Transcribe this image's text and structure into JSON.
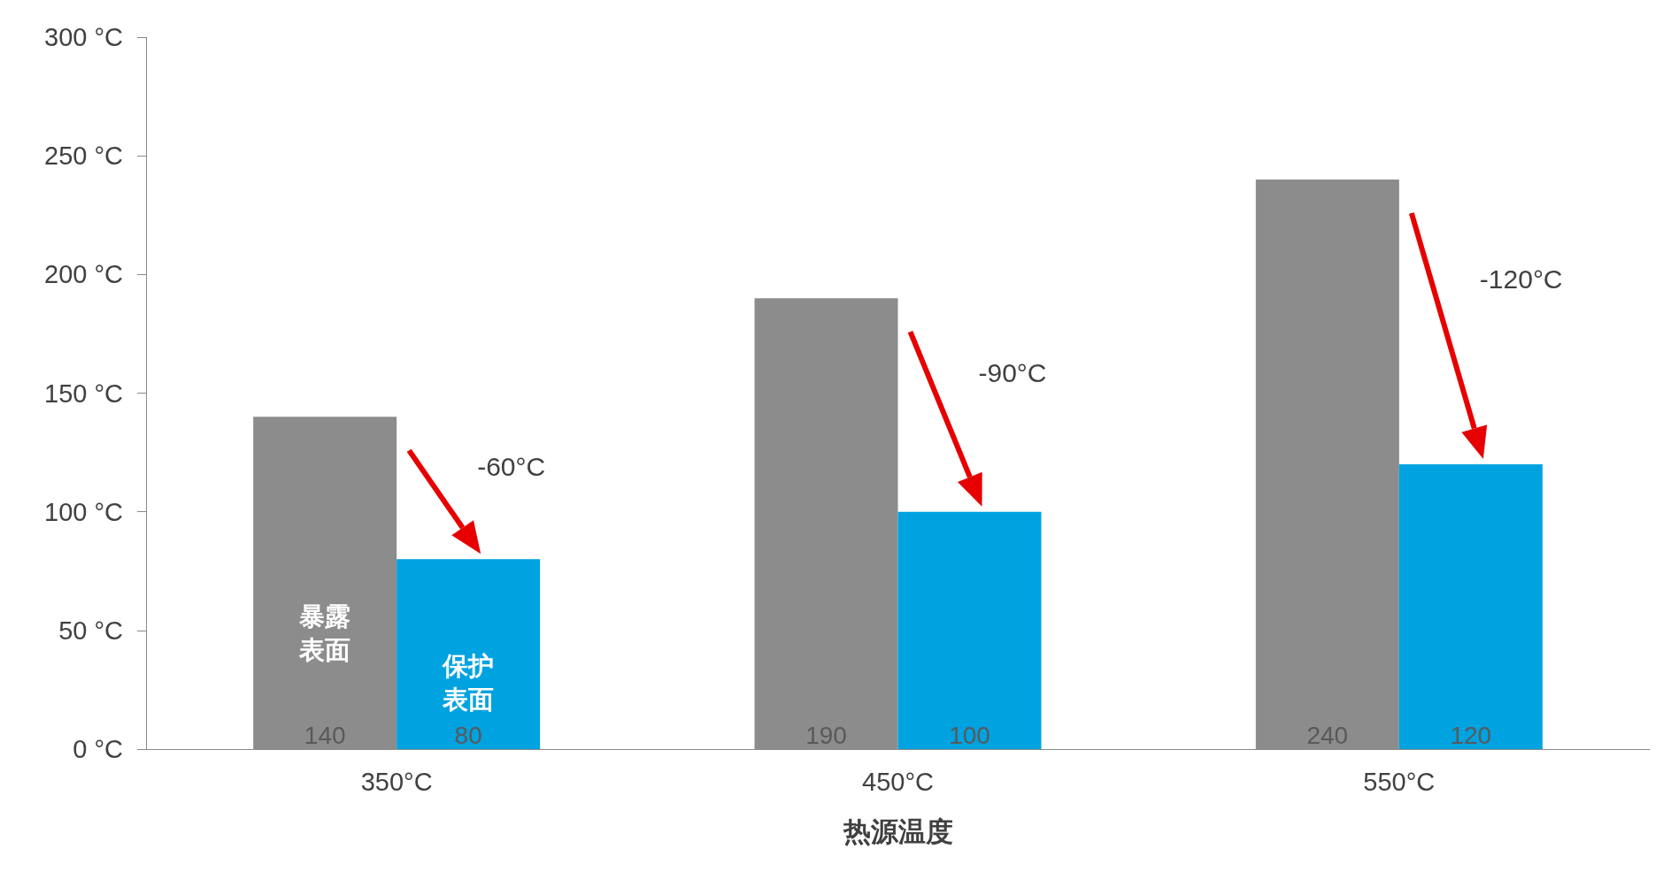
{
  "chart_data": {
    "type": "bar",
    "xlabel": "热源温度",
    "categories": [
      "350°C",
      "450°C",
      "550°C"
    ],
    "series": [
      {
        "name": "暴露表面",
        "color": "#8c8c8c",
        "values": [
          140,
          190,
          240
        ]
      },
      {
        "name": "保护表面",
        "color": "#00a2e0",
        "values": [
          80,
          100,
          120
        ]
      }
    ],
    "ylim": [
      0,
      300
    ],
    "yticks": [
      {
        "value": 0,
        "label": "0 °C"
      },
      {
        "value": 50,
        "label": "50 °C"
      },
      {
        "value": 100,
        "label": "100 °C"
      },
      {
        "value": 150,
        "label": "150 °C"
      },
      {
        "value": 200,
        "label": "200 °C"
      },
      {
        "value": 250,
        "label": "250 °C"
      },
      {
        "value": 300,
        "label": "300 °C"
      }
    ],
    "data_labels": true,
    "grid": false,
    "legend": false,
    "annotations": [
      "-60°C",
      "-90°C",
      "-120°C"
    ]
  }
}
